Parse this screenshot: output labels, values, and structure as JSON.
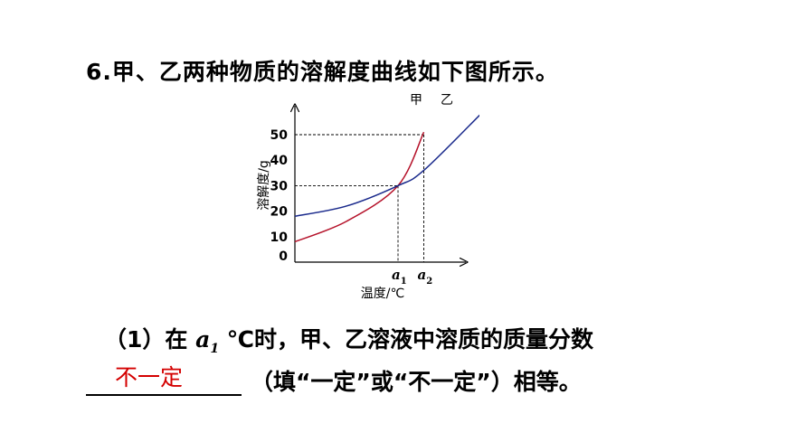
{
  "question": {
    "number": "6.",
    "text": "甲、乙两种物质的溶解度曲线如下图所示。"
  },
  "chart_data": {
    "type": "line",
    "ylabel": "溶解度/g",
    "xlabel": "温度/℃",
    "yticks": [
      "0",
      "10",
      "20",
      "30",
      "40",
      "50"
    ],
    "ylim": [
      0,
      52
    ],
    "x_markers": [
      {
        "label": "a",
        "subscript": "1"
      },
      {
        "label": "a",
        "subscript": "2"
      }
    ],
    "series": [
      {
        "name": "甲",
        "color": "#b5122a",
        "x": [
          0,
          0.5,
          1,
          1.25
        ],
        "y": [
          8,
          16,
          30,
          51
        ]
      },
      {
        "name": "乙",
        "color": "#1a2a8c",
        "x": [
          0,
          0.5,
          1,
          1.25,
          1.8
        ],
        "y": [
          18,
          22,
          30,
          36,
          58
        ]
      }
    ],
    "guides": [
      {
        "y": 30,
        "x": 1
      },
      {
        "y": 50,
        "x": 1.25
      }
    ]
  },
  "sub": {
    "prefix": "（1）在 ",
    "var": "a",
    "var_sub": "1",
    "suffix": " ℃时，甲、乙溶液中溶质的质量分数"
  },
  "answer": "不一定",
  "tail": "（填“一定”或“不一定”）相等。"
}
